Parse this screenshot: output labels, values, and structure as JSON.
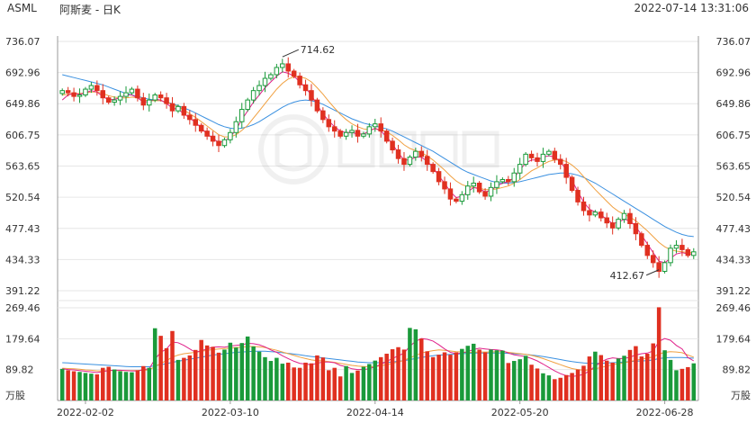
{
  "header": {
    "symbol": "ASML",
    "name": "阿斯麦 - 日K",
    "datetime": "2022-07-14 13:31:06"
  },
  "colors": {
    "up": "#1a9a3a",
    "down": "#e03020",
    "ma_fast": "#e0208a",
    "ma_mid": "#f0a040",
    "ma_slow": "#3a90e0",
    "grid": "#e6e6e6",
    "axis": "#999999"
  },
  "chart_data": {
    "type": "candlestick",
    "title": "ASML 阿斯麦 - 日K",
    "price_axis": {
      "ticks": [
        "736.07",
        "692.96",
        "649.86",
        "606.75",
        "563.65",
        "520.54",
        "477.43",
        "434.33",
        "391.22"
      ],
      "min": 391.22,
      "max": 736.07
    },
    "volume_axis": {
      "ticks": [
        "269.46",
        "179.64",
        "89.82"
      ],
      "unit": "万股",
      "max": 269.46
    },
    "x_labels": [
      "2022-02-02",
      "2022-03-10",
      "2022-04-14",
      "2022-05-20",
      "2022-06-28"
    ],
    "annotations": {
      "high": "714.62",
      "low": "412.67"
    },
    "close": [
      668,
      665,
      660,
      662,
      670,
      675,
      668,
      658,
      652,
      655,
      660,
      665,
      670,
      658,
      648,
      655,
      662,
      658,
      650,
      640,
      646,
      634,
      628,
      620,
      612,
      605,
      598,
      592,
      600,
      610,
      625,
      642,
      655,
      668,
      675,
      685,
      690,
      700,
      705,
      695,
      688,
      676,
      668,
      655,
      640,
      628,
      618,
      612,
      605,
      610,
      613,
      605,
      608,
      618,
      622,
      612,
      598,
      586,
      574,
      566,
      576,
      584,
      577,
      566,
      556,
      542,
      532,
      518,
      515,
      524,
      536,
      540,
      528,
      522,
      534,
      542,
      545,
      542,
      554,
      566,
      580,
      575,
      570,
      580,
      584,
      573,
      566,
      548,
      530,
      514,
      502,
      496,
      500,
      492,
      485,
      478,
      490,
      498,
      484,
      470,
      454,
      440,
      430,
      418,
      430,
      450,
      454,
      448,
      440,
      445
    ],
    "volume": [
      92,
      88,
      85,
      83,
      80,
      78,
      76,
      95,
      98,
      90,
      85,
      83,
      82,
      88,
      100,
      95,
      210,
      188,
      152,
      202,
      118,
      124,
      131,
      147,
      176,
      160,
      156,
      139,
      148,
      168,
      154,
      167,
      186,
      157,
      142,
      126,
      115,
      124,
      107,
      110,
      96,
      95,
      110,
      108,
      131,
      125,
      88,
      95,
      70,
      100,
      80,
      87,
      98,
      106,
      116,
      126,
      136,
      149,
      155,
      148,
      211,
      207,
      180,
      143,
      126,
      133,
      140,
      133,
      140,
      150,
      159,
      165,
      148,
      140,
      148,
      146,
      145,
      109,
      115,
      120,
      130,
      104,
      93,
      79,
      73,
      62,
      66,
      74,
      80,
      90,
      101,
      128,
      142,
      132,
      116,
      110,
      122,
      130,
      147,
      158,
      128,
      136,
      166,
      271,
      146,
      118,
      88,
      92,
      97,
      108
    ],
    "ma_fast": [
      655,
      662,
      664,
      663,
      665,
      668,
      666,
      660,
      655,
      656,
      658,
      662,
      662,
      658,
      652,
      653,
      656,
      655,
      650,
      644,
      642,
      636,
      630,
      624,
      616,
      608,
      602,
      596,
      598,
      604,
      614,
      628,
      640,
      652,
      662,
      672,
      680,
      688,
      694,
      692,
      688,
      680,
      672,
      662,
      648,
      636,
      626,
      618,
      612,
      610,
      610,
      608,
      608,
      612,
      616,
      612,
      604,
      594,
      582,
      572,
      572,
      576,
      576,
      570,
      562,
      550,
      540,
      528,
      520,
      522,
      528,
      534,
      532,
      528,
      530,
      536,
      540,
      542,
      548,
      558,
      568,
      572,
      572,
      576,
      578,
      576,
      570,
      558,
      544,
      528,
      514,
      504,
      500,
      496,
      490,
      484,
      486,
      490,
      488,
      480,
      468,
      456,
      444,
      432,
      430,
      436,
      442,
      444,
      442,
      442
    ],
    "ma_mid": [
      662,
      663,
      664,
      664,
      665,
      666,
      666,
      664,
      661,
      659,
      658,
      658,
      659,
      658,
      655,
      654,
      654,
      654,
      652,
      649,
      646,
      641,
      636,
      631,
      625,
      619,
      613,
      607,
      604,
      604,
      607,
      613,
      620,
      630,
      640,
      650,
      660,
      670,
      678,
      684,
      687,
      687,
      685,
      680,
      672,
      663,
      653,
      644,
      635,
      628,
      622,
      618,
      615,
      614,
      615,
      614,
      611,
      606,
      600,
      593,
      588,
      585,
      582,
      578,
      572,
      565,
      558,
      550,
      543,
      538,
      535,
      534,
      533,
      531,
      531,
      532,
      534,
      536,
      540,
      545,
      551,
      557,
      561,
      566,
      570,
      572,
      572,
      570,
      565,
      558,
      549,
      540,
      531,
      523,
      515,
      507,
      501,
      497,
      493,
      488,
      481,
      474,
      466,
      458,
      452,
      448,
      446,
      445,
      444,
      444
    ],
    "ma_slow": [
      690,
      688,
      686,
      684,
      682,
      680,
      678,
      676,
      673,
      670,
      667,
      664,
      662,
      660,
      658,
      656,
      655,
      654,
      652,
      650,
      647,
      644,
      641,
      637,
      633,
      629,
      625,
      621,
      618,
      616,
      615,
      616,
      618,
      621,
      625,
      630,
      635,
      640,
      645,
      649,
      652,
      654,
      655,
      654,
      652,
      649,
      645,
      641,
      637,
      633,
      629,
      626,
      623,
      621,
      619,
      617,
      615,
      612,
      608,
      604,
      600,
      596,
      592,
      588,
      584,
      579,
      574,
      569,
      564,
      559,
      555,
      552,
      549,
      546,
      543,
      541,
      540,
      540,
      541,
      542,
      544,
      546,
      548,
      550,
      552,
      553,
      554,
      554,
      553,
      551,
      548,
      544,
      540,
      535,
      530,
      525,
      520,
      515,
      510,
      505,
      500,
      495,
      490,
      485,
      480,
      476,
      472,
      469,
      467,
      466
    ],
    "vol_ma_fast": [
      92,
      90,
      89,
      87,
      85,
      83,
      81,
      84,
      87,
      88,
      88,
      87,
      86,
      86,
      90,
      92,
      120,
      140,
      150,
      170,
      168,
      160,
      150,
      140,
      145,
      150,
      155,
      156,
      155,
      158,
      160,
      162,
      166,
      165,
      162,
      156,
      147,
      140,
      130,
      122,
      114,
      108,
      106,
      104,
      108,
      112,
      112,
      110,
      102,
      98,
      92,
      90,
      90,
      92,
      98,
      105,
      114,
      122,
      130,
      138,
      158,
      172,
      180,
      178,
      173,
      162,
      150,
      140,
      136,
      138,
      142,
      148,
      152,
      150,
      148,
      147,
      145,
      138,
      133,
      130,
      128,
      122,
      115,
      106,
      96,
      86,
      78,
      72,
      70,
      72,
      76,
      86,
      100,
      112,
      120,
      124,
      122,
      122,
      126,
      132,
      136,
      138,
      144,
      172,
      180,
      175,
      160,
      150,
      125,
      115
    ],
    "vol_ma_mid": [
      94,
      93,
      92,
      91,
      89,
      88,
      86,
      86,
      87,
      87,
      87,
      87,
      87,
      87,
      88,
      89,
      98,
      108,
      116,
      126,
      132,
      136,
      138,
      140,
      143,
      146,
      148,
      150,
      151,
      152,
      154,
      155,
      157,
      157,
      156,
      154,
      150,
      146,
      141,
      136,
      131,
      126,
      122,
      118,
      116,
      115,
      113,
      111,
      108,
      105,
      102,
      100,
      99,
      98,
      99,
      101,
      104,
      108,
      112,
      117,
      124,
      131,
      138,
      142,
      145,
      147,
      146,
      144,
      142,
      141,
      140,
      140,
      141,
      141,
      141,
      142,
      142,
      140,
      138,
      136,
      134,
      131,
      127,
      122,
      116,
      110,
      104,
      98,
      93,
      90,
      88,
      89,
      92,
      96,
      100,
      104,
      107,
      110,
      113,
      117,
      120,
      123,
      127,
      135,
      140,
      142,
      141,
      139,
      132,
      126
    ],
    "vol_ma_slow": [
      110,
      109,
      108,
      107,
      106,
      105,
      104,
      103,
      102,
      101,
      100,
      99,
      98,
      98,
      98,
      98,
      101,
      104,
      107,
      111,
      114,
      117,
      120,
      123,
      126,
      129,
      132,
      134,
      136,
      138,
      140,
      141,
      142,
      143,
      143,
      143,
      142,
      141,
      139,
      137,
      135,
      133,
      130,
      128,
      126,
      124,
      122,
      120,
      118,
      116,
      114,
      112,
      111,
      110,
      110,
      110,
      111,
      112,
      114,
      116,
      119,
      122,
      125,
      128,
      130,
      132,
      133,
      134,
      135,
      136,
      137,
      138,
      138,
      138,
      138,
      138,
      138,
      137,
      136,
      135,
      134,
      132,
      130,
      128,
      125,
      122,
      119,
      116,
      113,
      111,
      109,
      108,
      108,
      108,
      109,
      110,
      111,
      112,
      113,
      114,
      115,
      116,
      118,
      122,
      124,
      125,
      125,
      125,
      124,
      123
    ]
  }
}
